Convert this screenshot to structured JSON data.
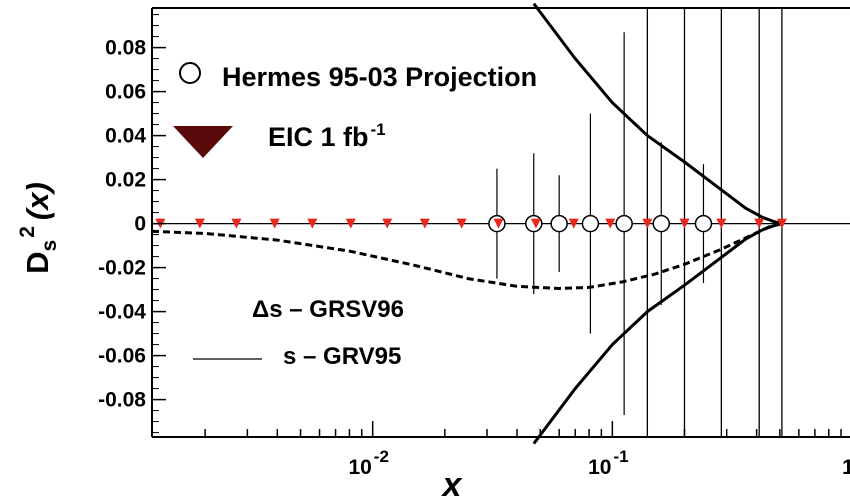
{
  "chart_data": {
    "type": "scatter",
    "title": "",
    "xlabel": "x",
    "ylabel_main": "D",
    "ylabel_sub": "s",
    "ylabel_sup": "2",
    "ylabel_arg": "(x)",
    "xscale": "log",
    "xlim": [
      0.0012,
      1.0
    ],
    "ylim": [
      -0.097,
      0.098
    ],
    "grid": false,
    "x_tick_labels": [
      {
        "value": 0.01,
        "base": "10",
        "exp": "-2"
      },
      {
        "value": 0.1,
        "base": "10",
        "exp": "-1"
      },
      {
        "value": 1.0,
        "base": "1",
        "exp": ""
      }
    ],
    "y_tick_labels": [
      {
        "value": 0.08,
        "label": "0.08"
      },
      {
        "value": 0.06,
        "label": "0.06"
      },
      {
        "value": 0.04,
        "label": "0.04"
      },
      {
        "value": 0.02,
        "label": "0.02"
      },
      {
        "value": 0,
        "label": "0"
      },
      {
        "value": -0.02,
        "label": "-0.02"
      },
      {
        "value": -0.04,
        "label": "-0.04"
      },
      {
        "value": -0.06,
        "label": "-0.06"
      },
      {
        "value": -0.08,
        "label": "-0.08"
      }
    ],
    "legend_top": [
      {
        "label_main": "Hermes 95-03 Projection",
        "sup": "",
        "marker": "open-circle"
      },
      {
        "label_main": "EIC 1 fb",
        "sup": "-1",
        "marker": "down-triangle"
      }
    ],
    "legend_bottom": [
      {
        "label": "Δs – GRSV96",
        "style": "dashed"
      },
      {
        "label": "s – GRV95",
        "style": "solid"
      }
    ],
    "series": [
      {
        "name": "Hermes 95-03 Projection",
        "marker": "open-circle",
        "x": [
          0.033,
          0.047,
          0.06,
          0.081,
          0.112,
          0.16,
          0.24
        ],
        "y": [
          0,
          0,
          0,
          0,
          0,
          0,
          0
        ],
        "yerr": [
          0.025,
          0.032,
          0.022,
          0.05,
          0.087,
          0.037,
          0.027
        ]
      },
      {
        "name": "EIC 1 fb-1",
        "marker": "down-triangle",
        "color": "#e8281c",
        "x": [
          0.0013,
          0.0019,
          0.0027,
          0.0039,
          0.0056,
          0.0081,
          0.0115,
          0.0165,
          0.0235,
          0.0335,
          0.048,
          0.069,
          0.098,
          0.14,
          0.2,
          0.285,
          0.41,
          0.51
        ],
        "y": [
          0,
          0,
          0,
          0,
          0,
          0,
          0,
          0,
          0,
          0,
          0,
          0,
          0,
          0,
          0,
          0,
          0,
          0
        ],
        "yerr": [
          0.0002,
          0.0002,
          0.0002,
          0.0002,
          0.0002,
          0.0002,
          0.0002,
          0.0002,
          0.0003,
          0.0004,
          0.0006,
          0.0009,
          0.0015,
          0.25,
          0.25,
          0.25,
          0.25,
          0.25
        ]
      },
      {
        "name": "Δs – GRSV96",
        "style": "dashed",
        "x": [
          0.0012,
          0.002,
          0.004,
          0.008,
          0.015,
          0.025,
          0.04,
          0.06,
          0.08,
          0.11,
          0.15,
          0.2,
          0.28,
          0.36,
          0.45,
          0.51
        ],
        "y": [
          -0.0035,
          -0.0045,
          -0.0075,
          -0.0125,
          -0.019,
          -0.025,
          -0.0285,
          -0.0295,
          -0.029,
          -0.0265,
          -0.023,
          -0.0185,
          -0.012,
          -0.0065,
          -0.0015,
          0
        ]
      },
      {
        "name": "s – GRV95 upper",
        "style": "solid",
        "x": [
          0.047,
          0.07,
          0.1,
          0.14,
          0.2,
          0.28,
          0.36,
          0.42,
          0.47,
          0.51
        ],
        "y": [
          0.1,
          0.075,
          0.055,
          0.04,
          0.028,
          0.016,
          0.007,
          0.003,
          0.001,
          0
        ]
      },
      {
        "name": "s – GRV95 lower",
        "style": "solid",
        "x": [
          0.047,
          0.07,
          0.1,
          0.14,
          0.2,
          0.28,
          0.36,
          0.42,
          0.47,
          0.51
        ],
        "y": [
          -0.1,
          -0.075,
          -0.055,
          -0.04,
          -0.028,
          -0.016,
          -0.007,
          -0.003,
          -0.001,
          0
        ]
      }
    ]
  }
}
